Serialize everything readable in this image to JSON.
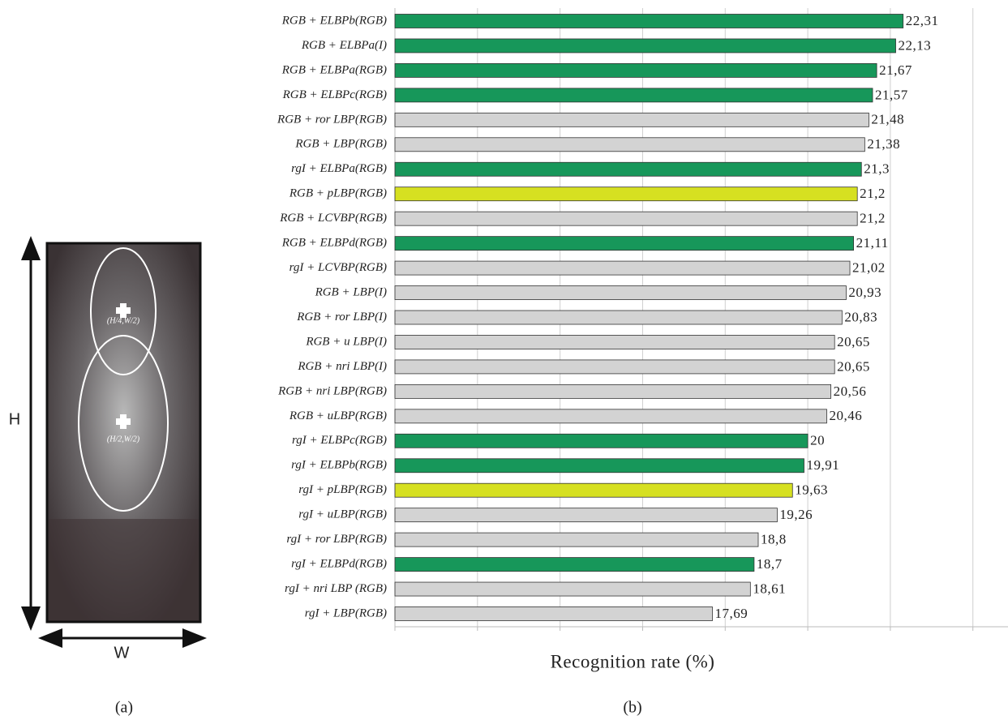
{
  "figure_a": {
    "height_label": "H",
    "width_label": "W",
    "point_top": "(H/4,W/2)",
    "point_mid": "(H/2,W/2)",
    "caption": "(a)"
  },
  "chart_data": {
    "type": "hbar",
    "caption": "(b)",
    "x_label": "Recognition rate (%)",
    "categories": [
      "RGB + ELBPb(RGB)",
      "RGB + ELBPa(I)",
      "RGB + ELBPa(RGB)",
      "RGB + ELBPc(RGB)",
      "RGB + ror LBP(RGB)",
      "RGB + LBP(RGB)",
      "rgI + ELBPa(RGB)",
      "RGB + pLBP(RGB)",
      "RGB + LCVBP(RGB)",
      "RGB + ELBPd(RGB)",
      "rgI + LCVBP(RGB)",
      "RGB + LBP(I)",
      "RGB + ror LBP(I)",
      "RGB + u LBP(I)",
      "RGB + nri LBP(I)",
      "RGB + nri LBP(RGB)",
      "RGB + uLBP(RGB)",
      "rgI + ELBPc(RGB)",
      "rgI + ELBPb(RGB)",
      "rgI + pLBP(RGB)",
      "rgI + uLBP(RGB)",
      "rgI + ror LBP(RGB)",
      "rgI + ELBPd(RGB)",
      "rgI + nri LBP (RGB)",
      "rgI + LBP(RGB)"
    ],
    "values": [
      22.31,
      22.13,
      21.67,
      21.57,
      21.48,
      21.38,
      21.3,
      21.2,
      21.2,
      21.11,
      21.02,
      20.93,
      20.83,
      20.65,
      20.65,
      20.56,
      20.46,
      20,
      19.91,
      19.63,
      19.26,
      18.8,
      18.7,
      18.61,
      17.69
    ],
    "value_labels": [
      "22,31",
      "22,13",
      "21,67",
      "21,57",
      "21,48",
      "21,38",
      "21,3",
      "21,2",
      "21,2",
      "21,11",
      "21,02",
      "20,93",
      "20,83",
      "20,65",
      "20,65",
      "20,56",
      "20,46",
      "20",
      "19,91",
      "19,63",
      "19,26",
      "18,8",
      "18,7",
      "18,61",
      "17,69"
    ],
    "colors": [
      "#17975a",
      "#17975a",
      "#17975a",
      "#17975a",
      "#d3d3d3",
      "#d3d3d3",
      "#17975a",
      "#d6e021",
      "#d3d3d3",
      "#17975a",
      "#d3d3d3",
      "#d3d3d3",
      "#d3d3d3",
      "#d3d3d3",
      "#d3d3d3",
      "#d3d3d3",
      "#d3d3d3",
      "#17975a",
      "#17975a",
      "#d6e021",
      "#d3d3d3",
      "#d3d3d3",
      "#17975a",
      "#d3d3d3",
      "#d3d3d3"
    ],
    "xlim": [
      10,
      24.85
    ],
    "xticks": [
      10,
      12,
      14,
      16,
      18,
      20,
      22,
      24
    ],
    "grid": true
  }
}
